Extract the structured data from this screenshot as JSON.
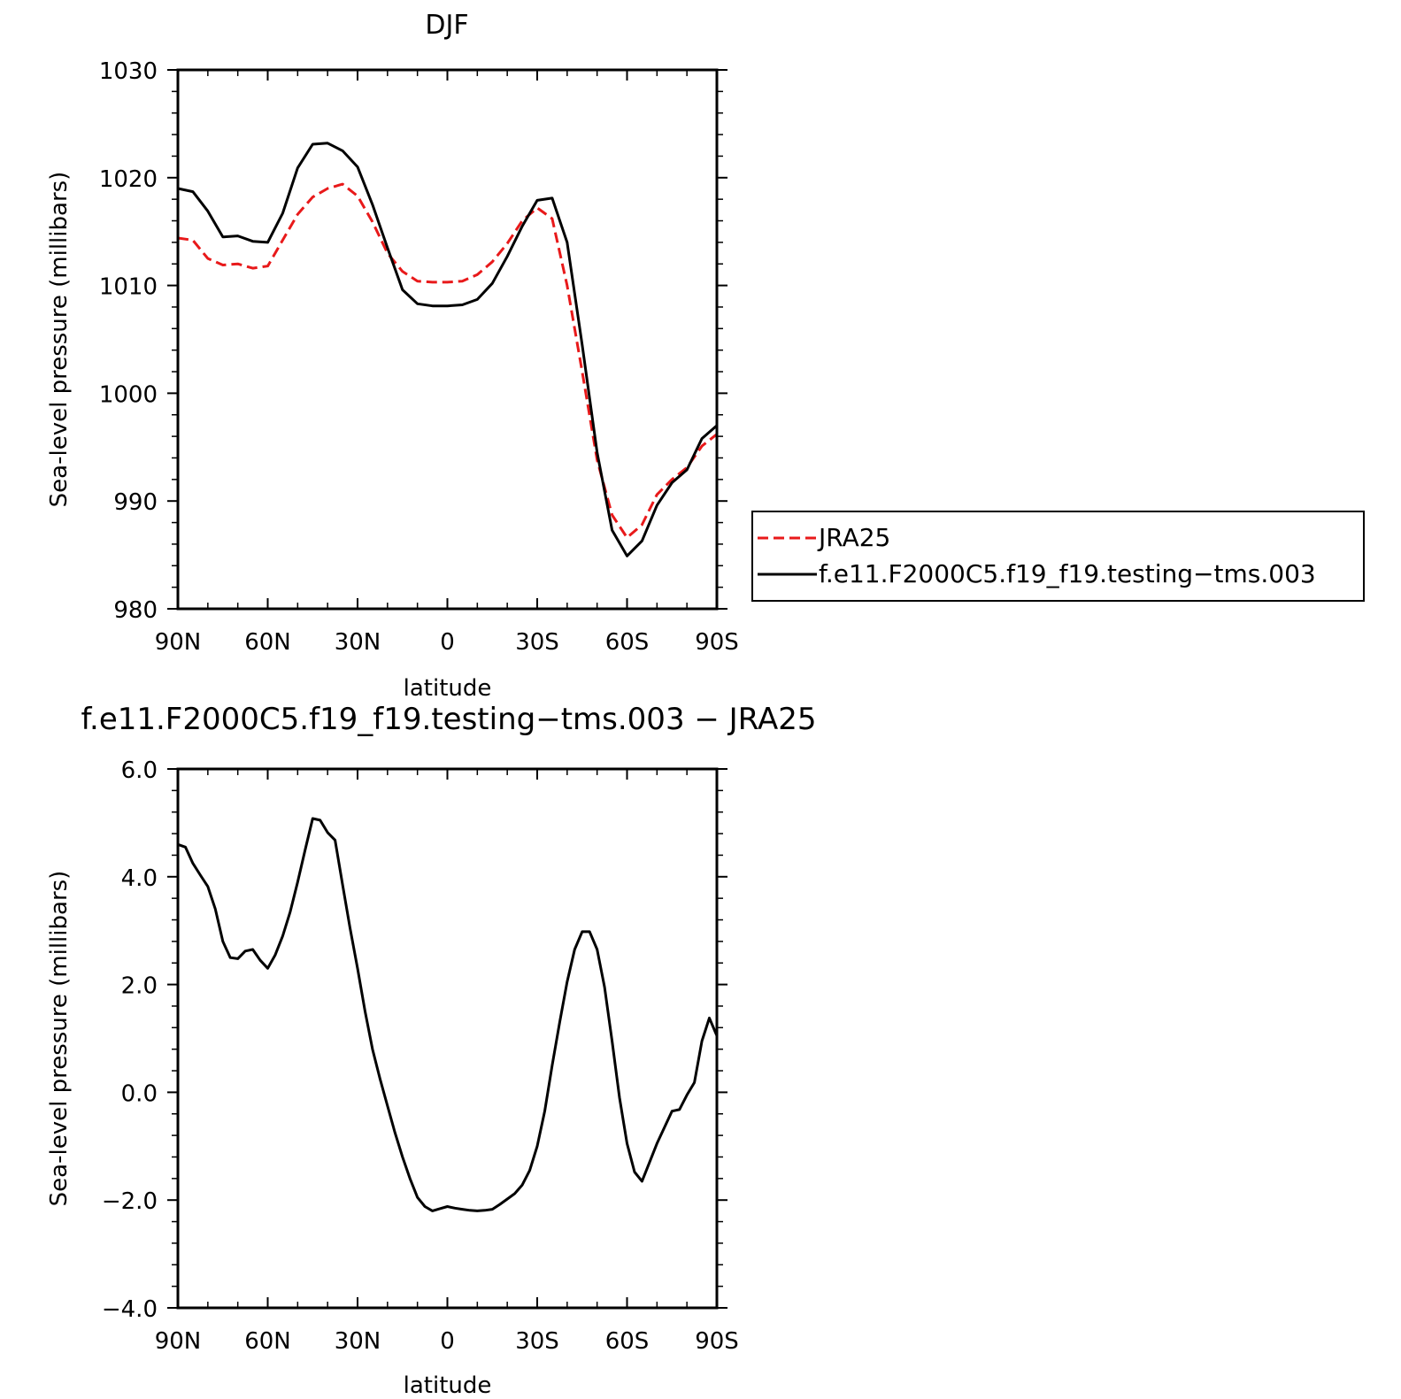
{
  "colors": {
    "model": "#000000",
    "reference": "#e8191a",
    "axes": "#000000",
    "background": "#ffffff"
  },
  "chart_data": [
    {
      "type": "line",
      "title": "DJF",
      "xlabel": "latitude",
      "ylabel": "Sea-level pressure (millibars)",
      "xlim": [
        90,
        -90
      ],
      "ylim": [
        980,
        1030
      ],
      "xticks": [
        90,
        60,
        30,
        0,
        -30,
        -60,
        -90
      ],
      "xtick_labels": [
        "90N",
        "60N",
        "30N",
        "0",
        "30S",
        "60S",
        "90S"
      ],
      "yticks": [
        980,
        990,
        1000,
        1010,
        1020,
        1030
      ],
      "ytick_labels": [
        "980",
        "990",
        "1000",
        "1010",
        "1020",
        "1030"
      ],
      "grid": false,
      "legend_position": "right",
      "series": [
        {
          "name": "JRA25",
          "color": "#e8191a",
          "style": "dashed",
          "x": [
            90,
            85,
            80,
            75,
            70,
            65,
            60,
            55,
            50,
            45,
            40,
            35,
            30,
            25,
            20,
            15,
            10,
            5,
            0,
            -5,
            -10,
            -15,
            -20,
            -25,
            -30,
            -35,
            -40,
            -45,
            -50,
            -55,
            -60,
            -65,
            -70,
            -75,
            -80,
            -85,
            -90
          ],
          "y": [
            1014.4,
            1014.2,
            1012.5,
            1011.9,
            1012.0,
            1011.6,
            1011.8,
            1014.2,
            1016.6,
            1018.2,
            1019.0,
            1019.4,
            1018.3,
            1015.9,
            1013.0,
            1011.3,
            1010.4,
            1010.3,
            1010.3,
            1010.4,
            1011.0,
            1012.2,
            1013.9,
            1016.0,
            1017.2,
            1016.2,
            1010.0,
            1002.0,
            993.8,
            988.7,
            986.6,
            987.8,
            990.6,
            992.0,
            993.1,
            995.1,
            996.2
          ]
        },
        {
          "name": "f.e11.F2000C5.f19_f19.testing−tms.003",
          "color": "#000000",
          "style": "solid",
          "x": [
            90,
            85,
            80,
            75,
            70,
            65,
            60,
            55,
            50,
            45,
            40,
            35,
            30,
            25,
            20,
            15,
            10,
            5,
            0,
            -5,
            -10,
            -15,
            -20,
            -25,
            -30,
            -35,
            -40,
            -45,
            -50,
            -55,
            -60,
            -65,
            -70,
            -75,
            -80,
            -85,
            -90
          ],
          "y": [
            1019.0,
            1018.7,
            1016.9,
            1014.5,
            1014.6,
            1014.1,
            1014.0,
            1016.7,
            1020.9,
            1023.1,
            1023.2,
            1022.5,
            1021.0,
            1017.5,
            1013.5,
            1009.6,
            1008.3,
            1008.1,
            1008.1,
            1008.2,
            1008.7,
            1010.2,
            1012.7,
            1015.5,
            1017.9,
            1018.1,
            1014.0,
            1004.5,
            994.5,
            987.3,
            984.9,
            986.3,
            989.6,
            991.7,
            992.9,
            995.8,
            997.0
          ]
        }
      ]
    },
    {
      "type": "line",
      "title": "f.e11.F2000C5.f19_f19.testing−tms.003 − JRA25",
      "xlabel": "latitude",
      "ylabel": "Sea-level pressure (millibars)",
      "xlim": [
        90,
        -90
      ],
      "ylim": [
        -4.0,
        6.0
      ],
      "xticks": [
        90,
        60,
        30,
        0,
        -30,
        -60,
        -90
      ],
      "xtick_labels": [
        "90N",
        "60N",
        "30N",
        "0",
        "30S",
        "60S",
        "90S"
      ],
      "yticks": [
        -4.0,
        -2.0,
        0.0,
        2.0,
        4.0,
        6.0
      ],
      "ytick_labels": [
        "−4.0",
        "−2.0",
        "0.0",
        "2.0",
        "4.0",
        "6.0"
      ],
      "grid": false,
      "series": [
        {
          "color": "#000000",
          "style": "solid",
          "x": [
            90,
            87.5,
            85,
            82.5,
            80,
            77.5,
            75,
            72.5,
            70,
            67.5,
            65,
            62.5,
            60,
            57.5,
            55,
            52.5,
            50,
            47.5,
            45,
            42.5,
            40,
            37.5,
            35,
            32.5,
            30,
            27.5,
            25,
            22.5,
            20,
            17.5,
            15,
            12.5,
            10,
            7.5,
            5,
            2.5,
            0,
            -2.5,
            -5,
            -7.5,
            -10,
            -12.5,
            -15,
            -17.5,
            -20,
            -22.5,
            -25,
            -27.5,
            -30,
            -32.5,
            -35,
            -37.5,
            -40,
            -42.5,
            -45,
            -47.5,
            -50,
            -52.5,
            -55,
            -57.5,
            -60,
            -62.5,
            -65,
            -67.5,
            -70,
            -72.5,
            -75,
            -77.5,
            -80,
            -82.5,
            -85,
            -87.5,
            -90
          ],
          "y": [
            4.6,
            4.55,
            4.25,
            4.03,
            3.82,
            3.4,
            2.8,
            2.5,
            2.48,
            2.62,
            2.65,
            2.45,
            2.3,
            2.55,
            2.9,
            3.35,
            3.9,
            4.5,
            5.08,
            5.05,
            4.82,
            4.68,
            3.85,
            3.05,
            2.3,
            1.5,
            0.8,
            0.25,
            -0.25,
            -0.75,
            -1.2,
            -1.6,
            -1.95,
            -2.12,
            -2.2,
            -2.16,
            -2.12,
            -2.15,
            -2.17,
            -2.19,
            -2.2,
            -2.19,
            -2.17,
            -2.08,
            -1.98,
            -1.88,
            -1.72,
            -1.45,
            -1.0,
            -0.35,
            0.5,
            1.3,
            2.05,
            2.65,
            2.98,
            2.98,
            2.65,
            1.95,
            0.95,
            -0.1,
            -0.95,
            -1.48,
            -1.65,
            -1.3,
            -0.95,
            -0.65,
            -0.35,
            -0.32,
            -0.05,
            0.18,
            0.95,
            1.38,
            1.05
          ]
        }
      ]
    }
  ]
}
